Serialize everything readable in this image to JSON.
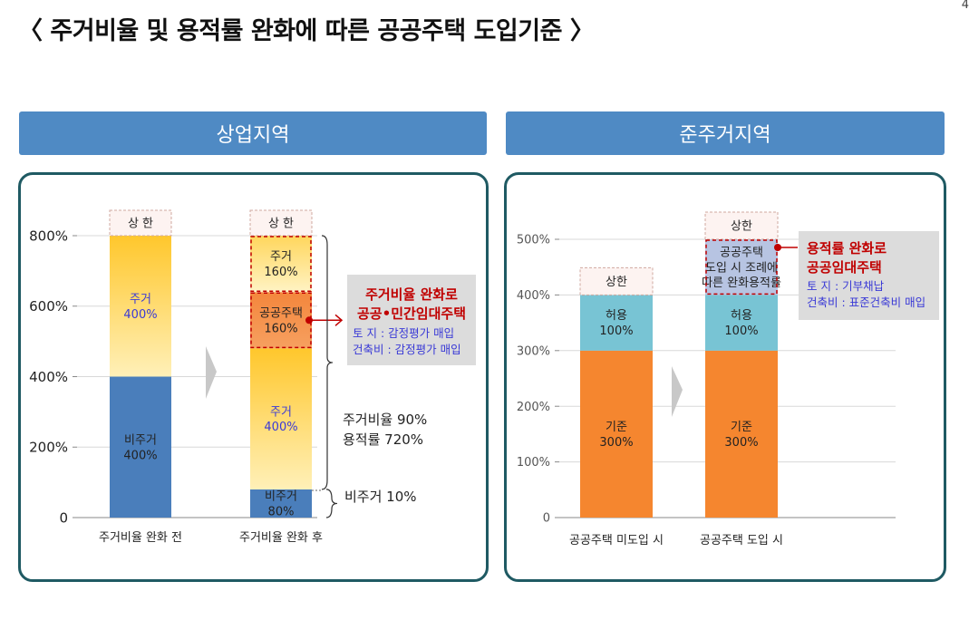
{
  "page_number": "4",
  "title": "〈 주거비율 및 용적률 완화에 따른 공공주택 도입기준 〉",
  "left_header": "상업지역",
  "right_header": "준주거지역",
  "chart_data": [
    {
      "type": "bar",
      "stacked": true,
      "ytick_labels": [
        "0",
        "200%",
        "400%",
        "600%",
        "800%"
      ],
      "ylim": [
        0,
        800
      ],
      "grid": true,
      "categories": [
        "주거비율 완화 전",
        "주거비율 완화 후"
      ],
      "cap_label": "상 한",
      "series": [
        {
          "name": "비주거",
          "values": [
            400,
            80
          ],
          "labels": [
            "비주거\n400%",
            "비주거\n80%"
          ],
          "color": "#4a7ebb"
        },
        {
          "name": "주거",
          "values": [
            400,
            400
          ],
          "labels": [
            "주거\n400%",
            "주거\n400%"
          ],
          "color": "#ffd24d",
          "label_color": "#3a3ad6"
        },
        {
          "name": "공공주택",
          "values": [
            0,
            160
          ],
          "labels": [
            "",
            "공공주택\n160%"
          ],
          "color": "#f6914a"
        },
        {
          "name": "주거",
          "values": [
            0,
            160
          ],
          "labels": [
            "",
            "주거\n160%"
          ],
          "color": "#ffe99a"
        }
      ],
      "annotation_box": {
        "title1": "주거비율 완화로",
        "title2": "공공•민간임대주택",
        "line1": "토   지 : 감정평가 매입",
        "line2": "건축비 : 감정평가 매입"
      },
      "brace_upper_line1": "주거비율 90%",
      "brace_upper_line2": "용적률 720%",
      "brace_lower": "비주거 10%"
    },
    {
      "type": "bar",
      "stacked": true,
      "ytick_labels": [
        "0",
        "100%",
        "200%",
        "300%",
        "400%",
        "500%"
      ],
      "ylim": [
        0,
        500
      ],
      "grid": true,
      "categories": [
        "공공주택 미도입 시",
        "공공주택 도입 시"
      ],
      "cap_label": "상한",
      "series": [
        {
          "name": "기준",
          "values": [
            300,
            300
          ],
          "labels": [
            "기준\n300%",
            "기준\n300%"
          ],
          "color": "#f5862f"
        },
        {
          "name": "허용",
          "values": [
            100,
            100
          ],
          "labels": [
            "허용\n100%",
            "허용\n100%"
          ],
          "color": "#78c4d4"
        },
        {
          "name": "공공주택",
          "values": [
            0,
            100
          ],
          "labels": [
            "",
            "공공주택\n도입 시 조례에\n따른 완화용적률"
          ],
          "color": "#b7c4e2"
        }
      ],
      "annotation_box": {
        "title1": "용적률 완화로",
        "title2": "공공임대주택",
        "line1": "토   지 : 기부채납",
        "line2": "건축비 : 표준건축비 매입"
      }
    }
  ]
}
